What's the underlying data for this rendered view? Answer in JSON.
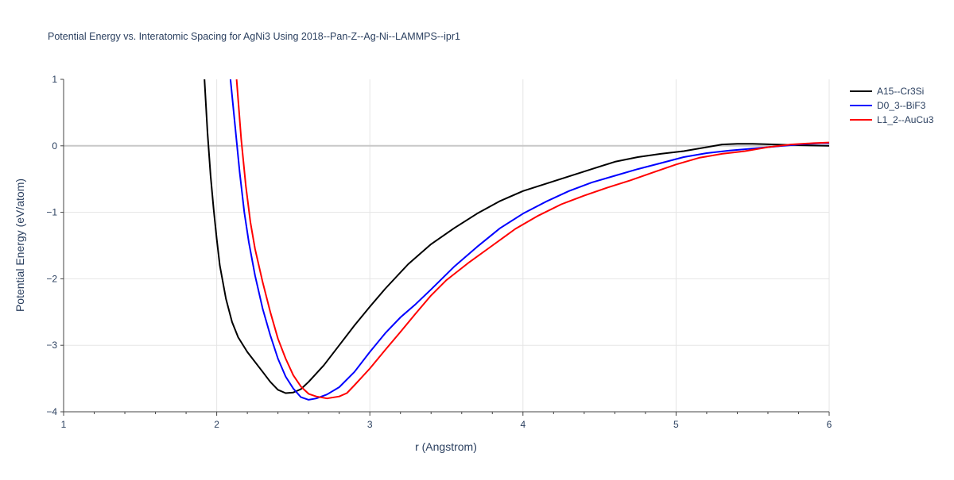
{
  "chart_data": {
    "type": "line",
    "title": "Potential Energy vs. Interatomic Spacing for AgNi3 Using 2018--Pan-Z--Ag-Ni--LAMMPS--ipr1",
    "xlabel": "r (Angstrom)",
    "ylabel": "Potential Energy (eV/atom)",
    "xlim": [
      1,
      6
    ],
    "ylim": [
      -4,
      1
    ],
    "xticks": [
      "1",
      "2",
      "3",
      "4",
      "5",
      "6"
    ],
    "yticks": [
      "1",
      "0",
      "−1",
      "−2",
      "−3",
      "−4"
    ],
    "grid": true,
    "legend_position": "top-right",
    "series": [
      {
        "name": "A15--Cr3Si",
        "color": "#000000",
        "points": [
          [
            1.92,
            1.0
          ],
          [
            1.94,
            0.2
          ],
          [
            1.96,
            -0.45
          ],
          [
            1.98,
            -0.95
          ],
          [
            2.0,
            -1.4
          ],
          [
            2.02,
            -1.8
          ],
          [
            2.06,
            -2.3
          ],
          [
            2.1,
            -2.65
          ],
          [
            2.14,
            -2.88
          ],
          [
            2.2,
            -3.1
          ],
          [
            2.3,
            -3.4
          ],
          [
            2.35,
            -3.55
          ],
          [
            2.4,
            -3.67
          ],
          [
            2.45,
            -3.72
          ],
          [
            2.5,
            -3.71
          ],
          [
            2.55,
            -3.66
          ],
          [
            2.6,
            -3.55
          ],
          [
            2.7,
            -3.3
          ],
          [
            2.8,
            -3.0
          ],
          [
            2.9,
            -2.7
          ],
          [
            3.0,
            -2.42
          ],
          [
            3.1,
            -2.15
          ],
          [
            3.25,
            -1.78
          ],
          [
            3.4,
            -1.48
          ],
          [
            3.55,
            -1.24
          ],
          [
            3.7,
            -1.02
          ],
          [
            3.85,
            -0.83
          ],
          [
            4.0,
            -0.68
          ],
          [
            4.15,
            -0.57
          ],
          [
            4.3,
            -0.46
          ],
          [
            4.45,
            -0.35
          ],
          [
            4.6,
            -0.24
          ],
          [
            4.75,
            -0.17
          ],
          [
            4.9,
            -0.12
          ],
          [
            5.05,
            -0.08
          ],
          [
            5.2,
            -0.02
          ],
          [
            5.3,
            0.02
          ],
          [
            5.4,
            0.03
          ],
          [
            5.5,
            0.03
          ],
          [
            5.65,
            0.02
          ],
          [
            5.8,
            0.01
          ],
          [
            6.0,
            0.0
          ]
        ]
      },
      {
        "name": "D0_3--BiF3",
        "color": "#0000ff",
        "points": [
          [
            2.09,
            1.0
          ],
          [
            2.12,
            0.3
          ],
          [
            2.15,
            -0.4
          ],
          [
            2.18,
            -1.0
          ],
          [
            2.21,
            -1.45
          ],
          [
            2.25,
            -1.95
          ],
          [
            2.3,
            -2.45
          ],
          [
            2.35,
            -2.85
          ],
          [
            2.4,
            -3.2
          ],
          [
            2.45,
            -3.47
          ],
          [
            2.5,
            -3.65
          ],
          [
            2.55,
            -3.78
          ],
          [
            2.6,
            -3.82
          ],
          [
            2.65,
            -3.8
          ],
          [
            2.72,
            -3.74
          ],
          [
            2.8,
            -3.63
          ],
          [
            2.9,
            -3.4
          ],
          [
            3.0,
            -3.1
          ],
          [
            3.1,
            -2.82
          ],
          [
            3.2,
            -2.58
          ],
          [
            3.3,
            -2.38
          ],
          [
            3.4,
            -2.16
          ],
          [
            3.55,
            -1.82
          ],
          [
            3.7,
            -1.52
          ],
          [
            3.85,
            -1.24
          ],
          [
            4.0,
            -1.02
          ],
          [
            4.15,
            -0.84
          ],
          [
            4.3,
            -0.68
          ],
          [
            4.45,
            -0.55
          ],
          [
            4.6,
            -0.45
          ],
          [
            4.75,
            -0.35
          ],
          [
            4.9,
            -0.26
          ],
          [
            5.05,
            -0.17
          ],
          [
            5.2,
            -0.11
          ],
          [
            5.35,
            -0.07
          ],
          [
            5.5,
            -0.04
          ],
          [
            5.65,
            -0.01
          ],
          [
            5.8,
            0.02
          ],
          [
            5.95,
            0.04
          ],
          [
            6.0,
            0.04
          ]
        ]
      },
      {
        "name": "L1_2--AuCu3",
        "color": "#ff0000",
        "points": [
          [
            2.13,
            1.0
          ],
          [
            2.16,
            0.1
          ],
          [
            2.19,
            -0.6
          ],
          [
            2.22,
            -1.15
          ],
          [
            2.25,
            -1.55
          ],
          [
            2.3,
            -2.05
          ],
          [
            2.35,
            -2.5
          ],
          [
            2.4,
            -2.9
          ],
          [
            2.45,
            -3.2
          ],
          [
            2.5,
            -3.45
          ],
          [
            2.55,
            -3.62
          ],
          [
            2.6,
            -3.73
          ],
          [
            2.65,
            -3.77
          ],
          [
            2.72,
            -3.8
          ],
          [
            2.8,
            -3.77
          ],
          [
            2.85,
            -3.72
          ],
          [
            2.9,
            -3.6
          ],
          [
            3.0,
            -3.35
          ],
          [
            3.1,
            -3.07
          ],
          [
            3.2,
            -2.8
          ],
          [
            3.3,
            -2.52
          ],
          [
            3.4,
            -2.25
          ],
          [
            3.5,
            -2.02
          ],
          [
            3.65,
            -1.75
          ],
          [
            3.8,
            -1.5
          ],
          [
            3.95,
            -1.25
          ],
          [
            4.1,
            -1.05
          ],
          [
            4.25,
            -0.88
          ],
          [
            4.4,
            -0.75
          ],
          [
            4.55,
            -0.63
          ],
          [
            4.7,
            -0.52
          ],
          [
            4.85,
            -0.4
          ],
          [
            5.0,
            -0.28
          ],
          [
            5.15,
            -0.18
          ],
          [
            5.3,
            -0.12
          ],
          [
            5.45,
            -0.08
          ],
          [
            5.6,
            -0.02
          ],
          [
            5.75,
            0.02
          ],
          [
            5.9,
            0.04
          ],
          [
            6.0,
            0.05
          ]
        ]
      }
    ]
  }
}
